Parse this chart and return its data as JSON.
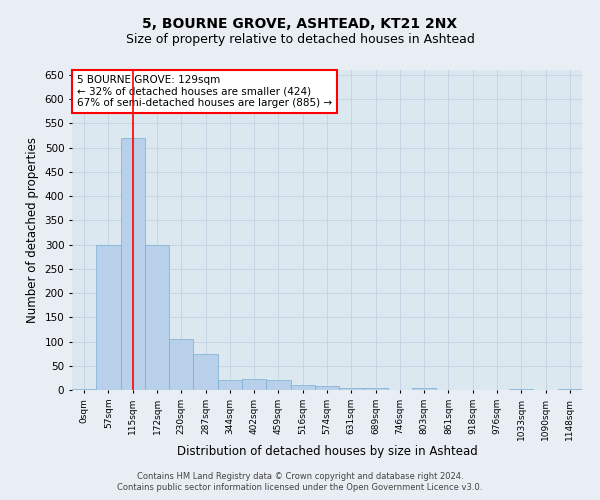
{
  "title1": "5, BOURNE GROVE, ASHTEAD, KT21 2NX",
  "title2": "Size of property relative to detached houses in Ashtead",
  "xlabel": "Distribution of detached houses by size in Ashtead",
  "ylabel": "Number of detached properties",
  "annotation_line1": "5 BOURNE GROVE: 129sqm",
  "annotation_line2": "← 32% of detached houses are smaller (424)",
  "annotation_line3": "67% of semi-detached houses are larger (885) →",
  "footer1": "Contains HM Land Registry data © Crown copyright and database right 2024.",
  "footer2": "Contains public sector information licensed under the Open Government Licence v3.0.",
  "bin_labels": [
    "0sqm",
    "57sqm",
    "115sqm",
    "172sqm",
    "230sqm",
    "287sqm",
    "344sqm",
    "402sqm",
    "459sqm",
    "516sqm",
    "574sqm",
    "631sqm",
    "689sqm",
    "746sqm",
    "803sqm",
    "861sqm",
    "918sqm",
    "976sqm",
    "1033sqm",
    "1090sqm",
    "1148sqm"
  ],
  "bar_values": [
    3,
    300,
    520,
    300,
    105,
    75,
    20,
    22,
    20,
    10,
    8,
    5,
    5,
    0,
    5,
    0,
    0,
    0,
    3,
    0,
    3
  ],
  "bar_color": "#b8d0ea",
  "bar_edge_color": "#7aafd4",
  "grid_color": "#c5d5e5",
  "background_color": "#dce8f0",
  "fig_background": "#e8eef4",
  "red_line_x": 2,
  "ylim": [
    0,
    660
  ],
  "yticks": [
    0,
    50,
    100,
    150,
    200,
    250,
    300,
    350,
    400,
    450,
    500,
    550,
    600,
    650
  ],
  "title1_fontsize": 10,
  "title2_fontsize": 9,
  "xlabel_fontsize": 8.5,
  "ylabel_fontsize": 8.5,
  "annotation_fontsize": 7.5,
  "footer_fontsize": 6.0
}
